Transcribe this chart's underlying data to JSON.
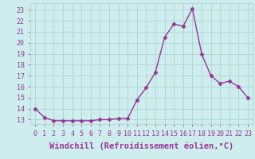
{
  "x": [
    0,
    1,
    2,
    3,
    4,
    5,
    6,
    7,
    8,
    9,
    10,
    11,
    12,
    13,
    14,
    15,
    16,
    17,
    18,
    19,
    20,
    21,
    22,
    23
  ],
  "y": [
    14.0,
    13.2,
    12.9,
    12.9,
    12.9,
    12.9,
    12.9,
    13.0,
    13.0,
    13.1,
    13.1,
    14.8,
    15.9,
    17.3,
    20.5,
    21.7,
    21.5,
    23.1,
    19.0,
    17.0,
    16.3,
    16.5,
    16.0,
    15.0
  ],
  "line_color": "#993399",
  "marker": "D",
  "markersize": 2.5,
  "linewidth": 1.0,
  "bg_color": "#ceeeed",
  "grid_color": "#aacccc",
  "xlabel": "Windchill (Refroidissement éolien,°C)",
  "ylabel_ticks": [
    13,
    14,
    15,
    16,
    17,
    18,
    19,
    20,
    21,
    22,
    23
  ],
  "ylim": [
    12.6,
    23.6
  ],
  "xlim": [
    -0.5,
    23.5
  ],
  "xticks": [
    0,
    1,
    2,
    3,
    4,
    5,
    6,
    7,
    8,
    9,
    10,
    11,
    12,
    13,
    14,
    15,
    16,
    17,
    18,
    19,
    20,
    21,
    22,
    23
  ],
  "tick_fontsize": 6.0,
  "xlabel_fontsize": 7.5
}
